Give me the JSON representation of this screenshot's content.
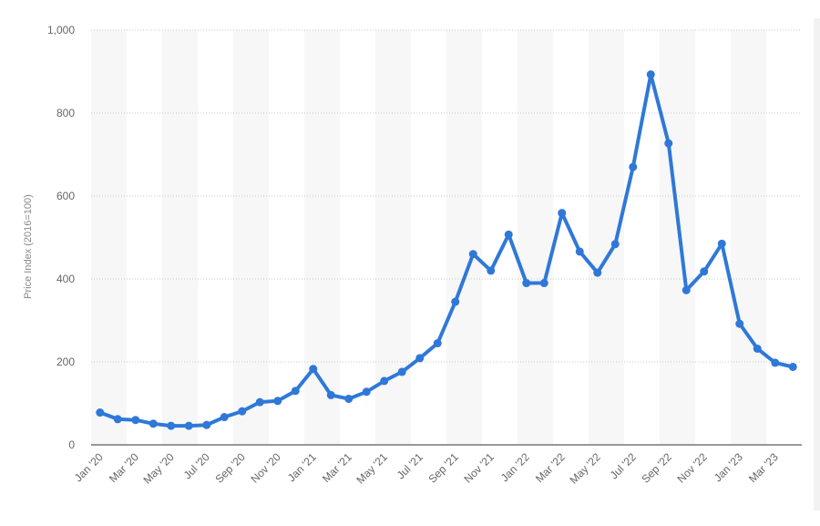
{
  "chart_data": {
    "type": "line",
    "title": "",
    "xlabel": "",
    "ylabel": "Price Index (2016=100)",
    "ylim": [
      0,
      1000
    ],
    "yticks": [
      0,
      200,
      400,
      600,
      800,
      1000
    ],
    "ytick_labels": [
      "0",
      "200",
      "400",
      "600",
      "800",
      "1,000"
    ],
    "grid": true,
    "legend": "none",
    "colors": {
      "line": "#2f78d8",
      "axis": "#333333",
      "grid": "#c8c8c8",
      "band": "#f7f7f7"
    },
    "x": [
      "Jan 2020",
      "Feb 2020",
      "Mar 2020",
      "Apr 2020",
      "May 2020",
      "Jun 2020",
      "Jul 2020",
      "Aug 2020",
      "Sep 2020",
      "Oct 2020",
      "Nov 2020",
      "Dec 2020",
      "Jan 2021",
      "Feb 2021",
      "Mar 2021",
      "Apr 2021",
      "May 2021",
      "Jun 2021",
      "Jul 2021",
      "Aug 2021",
      "Sep 2021",
      "Oct 2021",
      "Nov 2021",
      "Dec 2021",
      "Jan 2022",
      "Feb 2022",
      "Mar 2022",
      "Apr 2022",
      "May 2022",
      "Jun 2022",
      "Jul 2022",
      "Aug 2022",
      "Sep 2022",
      "Oct 2022",
      "Nov 2022",
      "Dec 2022",
      "Jan 2023",
      "Feb 2023",
      "Mar 2023",
      "Apr 2023"
    ],
    "xtick_labels": [
      "Jan '20",
      "Mar '20",
      "May '20",
      "Jul '20",
      "Sep '20",
      "Nov '20",
      "Jan '21",
      "Mar '21",
      "May '21",
      "Jul '21",
      "Sep '21",
      "Nov '21",
      "Jan '22",
      "Mar '22",
      "May '22",
      "Jul '22",
      "Sep '22",
      "Nov '22",
      "Jan '23",
      "Mar '23"
    ],
    "series": [
      {
        "name": "",
        "values": [
          78,
          62,
          60,
          51,
          46,
          46,
          48,
          67,
          81,
          103,
          106,
          130,
          183,
          120,
          111,
          128,
          154,
          176,
          209,
          245,
          345,
          460,
          420,
          507,
          390,
          390,
          559,
          466,
          415,
          484,
          670,
          893,
          727,
          373,
          418,
          485,
          292,
          232,
          198,
          188
        ]
      }
    ]
  }
}
